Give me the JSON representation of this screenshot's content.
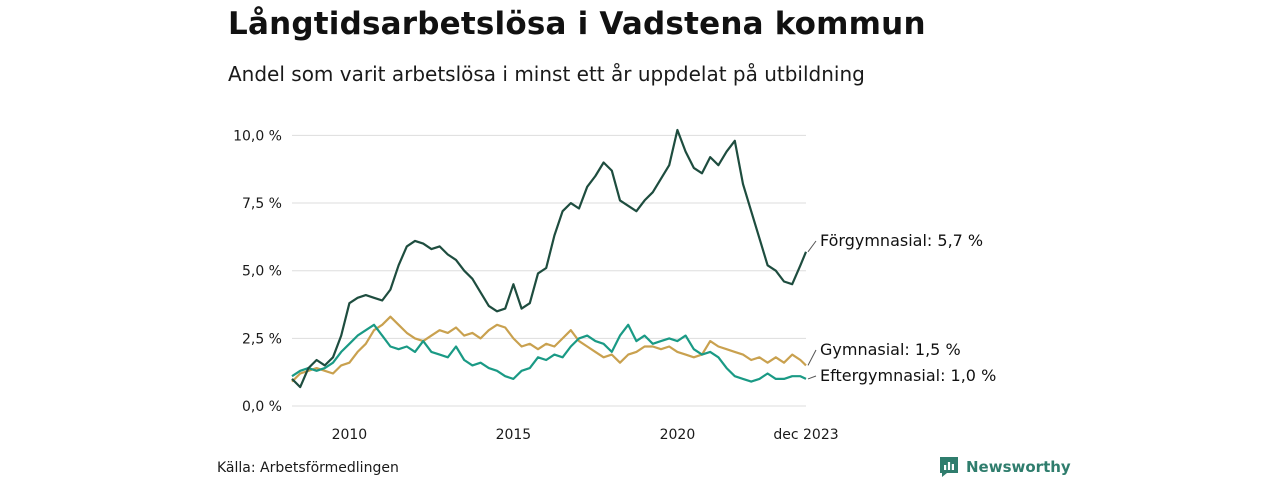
{
  "title": "Långtidsarbetslösa i Vadstena kommun",
  "subtitle": "Andel som varit arbetslösa i minst ett år uppdelat på utbildning",
  "source": "Källa: Arbetsförmedlingen",
  "brand": "Newsworthy",
  "colors": {
    "forgymnasial": "#1e4d3f",
    "gymnasial": "#c9a14f",
    "eftergymnasial": "#1a9a85",
    "grid": "#dddddd",
    "brand": "#2f7d6d"
  },
  "chart_data": {
    "type": "line",
    "title": "Långtidsarbetslösa i Vadstena kommun",
    "subtitle": "Andel som varit arbetslösa i minst ett år uppdelat på utbildning",
    "xlabel": "",
    "ylabel": "",
    "xlim": [
      2008.25,
      2023.92
    ],
    "ylim": [
      0,
      10.2
    ],
    "yticks": [
      0,
      2.5,
      5,
      7.5,
      10
    ],
    "ytick_labels": [
      "0,0 %",
      "2,5 %",
      "5,0 %",
      "7,5 %",
      "10,0 %"
    ],
    "xticks": [
      2010,
      2015,
      2020,
      2023.92
    ],
    "xtick_labels": [
      "2010",
      "2015",
      "2020",
      "dec 2023"
    ],
    "series": [
      {
        "name": "Förgymnasial",
        "label": "Förgymnasial: 5,7 %",
        "color": "#1e4d3f",
        "x": [
          2008.25,
          2008.5,
          2008.75,
          2009.0,
          2009.25,
          2009.5,
          2009.75,
          2010.0,
          2010.25,
          2010.5,
          2010.75,
          2011.0,
          2011.25,
          2011.5,
          2011.75,
          2012.0,
          2012.25,
          2012.5,
          2012.75,
          2013.0,
          2013.25,
          2013.5,
          2013.75,
          2014.0,
          2014.25,
          2014.5,
          2014.75,
          2015.0,
          2015.25,
          2015.5,
          2015.75,
          2016.0,
          2016.25,
          2016.5,
          2016.75,
          2017.0,
          2017.25,
          2017.5,
          2017.75,
          2018.0,
          2018.25,
          2018.5,
          2018.75,
          2019.0,
          2019.25,
          2019.5,
          2019.75,
          2020.0,
          2020.25,
          2020.5,
          2020.75,
          2021.0,
          2021.25,
          2021.5,
          2021.75,
          2022.0,
          2022.25,
          2022.5,
          2022.75,
          2023.0,
          2023.25,
          2023.5,
          2023.75,
          2023.92
        ],
        "values": [
          1.0,
          0.7,
          1.4,
          1.7,
          1.5,
          1.8,
          2.6,
          3.8,
          4.0,
          4.1,
          4.0,
          3.9,
          4.3,
          5.2,
          5.9,
          6.1,
          6.0,
          5.8,
          5.9,
          5.6,
          5.4,
          5.0,
          4.7,
          4.2,
          3.7,
          3.5,
          3.6,
          4.5,
          3.6,
          3.8,
          4.9,
          5.1,
          6.3,
          7.2,
          7.5,
          7.3,
          8.1,
          8.5,
          9.0,
          8.7,
          7.6,
          7.4,
          7.2,
          7.6,
          7.9,
          8.4,
          8.9,
          10.2,
          9.4,
          8.8,
          8.6,
          9.2,
          8.9,
          9.4,
          9.8,
          8.2,
          7.2,
          6.2,
          5.2,
          5.0,
          4.6,
          4.5,
          5.2,
          5.7
        ]
      },
      {
        "name": "Gymnasial",
        "label": "Gymnasial: 1,5 %",
        "color": "#c9a14f",
        "x": [
          2008.25,
          2008.5,
          2008.75,
          2009.0,
          2009.25,
          2009.5,
          2009.75,
          2010.0,
          2010.25,
          2010.5,
          2010.75,
          2011.0,
          2011.25,
          2011.5,
          2011.75,
          2012.0,
          2012.25,
          2012.5,
          2012.75,
          2013.0,
          2013.25,
          2013.5,
          2013.75,
          2014.0,
          2014.25,
          2014.5,
          2014.75,
          2015.0,
          2015.25,
          2015.5,
          2015.75,
          2016.0,
          2016.25,
          2016.5,
          2016.75,
          2017.0,
          2017.25,
          2017.5,
          2017.75,
          2018.0,
          2018.25,
          2018.5,
          2018.75,
          2019.0,
          2019.25,
          2019.5,
          2019.75,
          2020.0,
          2020.25,
          2020.5,
          2020.75,
          2021.0,
          2021.25,
          2021.5,
          2021.75,
          2022.0,
          2022.25,
          2022.5,
          2022.75,
          2023.0,
          2023.25,
          2023.5,
          2023.75,
          2023.92
        ],
        "values": [
          0.9,
          1.2,
          1.3,
          1.4,
          1.3,
          1.2,
          1.5,
          1.6,
          2.0,
          2.3,
          2.8,
          3.0,
          3.3,
          3.0,
          2.7,
          2.5,
          2.4,
          2.6,
          2.8,
          2.7,
          2.9,
          2.6,
          2.7,
          2.5,
          2.8,
          3.0,
          2.9,
          2.5,
          2.2,
          2.3,
          2.1,
          2.3,
          2.2,
          2.5,
          2.8,
          2.4,
          2.2,
          2.0,
          1.8,
          1.9,
          1.6,
          1.9,
          2.0,
          2.2,
          2.2,
          2.1,
          2.2,
          2.0,
          1.9,
          1.8,
          1.9,
          2.4,
          2.2,
          2.1,
          2.0,
          1.9,
          1.7,
          1.8,
          1.6,
          1.8,
          1.6,
          1.9,
          1.7,
          1.5
        ]
      },
      {
        "name": "Eftergymnasial",
        "label": "Eftergymnasial: 1,0 %",
        "color": "#1a9a85",
        "x": [
          2008.25,
          2008.5,
          2008.75,
          2009.0,
          2009.25,
          2009.5,
          2009.75,
          2010.0,
          2010.25,
          2010.5,
          2010.75,
          2011.0,
          2011.25,
          2011.5,
          2011.75,
          2012.0,
          2012.25,
          2012.5,
          2012.75,
          2013.0,
          2013.25,
          2013.5,
          2013.75,
          2014.0,
          2014.25,
          2014.5,
          2014.75,
          2015.0,
          2015.25,
          2015.5,
          2015.75,
          2016.0,
          2016.25,
          2016.5,
          2016.75,
          2017.0,
          2017.25,
          2017.5,
          2017.75,
          2018.0,
          2018.25,
          2018.5,
          2018.75,
          2019.0,
          2019.25,
          2019.5,
          2019.75,
          2020.0,
          2020.25,
          2020.5,
          2020.75,
          2021.0,
          2021.25,
          2021.5,
          2021.75,
          2022.0,
          2022.25,
          2022.5,
          2022.75,
          2023.0,
          2023.25,
          2023.5,
          2023.75,
          2023.92
        ],
        "values": [
          1.1,
          1.3,
          1.4,
          1.3,
          1.4,
          1.6,
          2.0,
          2.3,
          2.6,
          2.8,
          3.0,
          2.6,
          2.2,
          2.1,
          2.2,
          2.0,
          2.4,
          2.0,
          1.9,
          1.8,
          2.2,
          1.7,
          1.5,
          1.6,
          1.4,
          1.3,
          1.1,
          1.0,
          1.3,
          1.4,
          1.8,
          1.7,
          1.9,
          1.8,
          2.2,
          2.5,
          2.6,
          2.4,
          2.3,
          2.0,
          2.6,
          3.0,
          2.4,
          2.6,
          2.3,
          2.4,
          2.5,
          2.4,
          2.6,
          2.1,
          1.9,
          2.0,
          1.8,
          1.4,
          1.1,
          1.0,
          0.9,
          1.0,
          1.2,
          1.0,
          1.0,
          1.1,
          1.1,
          1.0
        ]
      }
    ]
  }
}
